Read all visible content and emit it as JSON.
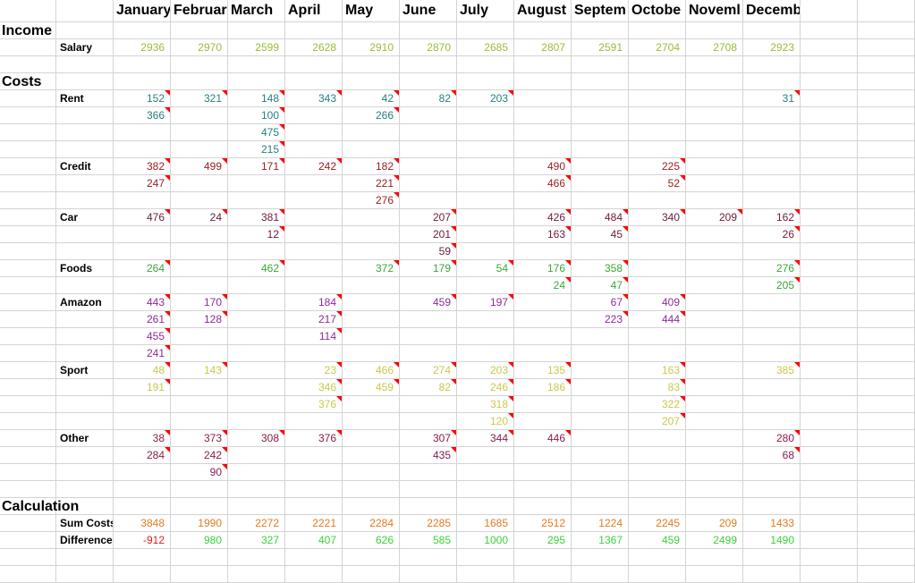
{
  "months": [
    "January",
    "Februar",
    "March",
    "April",
    "May",
    "June",
    "July",
    "August",
    "Septem",
    "Octobe",
    "Noveml",
    "December"
  ],
  "sections": {
    "income": "Income",
    "costs": "Costs",
    "calculation": "Calculation"
  },
  "colors": {
    "salary": "#9bbb3b",
    "rent": "#267f7f",
    "credit": "#9b1b1b",
    "car": "#6b1b3b",
    "foods": "#3aa63a",
    "amazon": "#8f2a9c",
    "sport": "#c9c94a",
    "other": "#8b1b4b",
    "sum": "#e07b20",
    "diff_pos": "#3ad13a",
    "diff_neg": "#e01b1b",
    "grid": "#d4d4d4"
  },
  "income": [
    {
      "label": "Salary",
      "color": "salary",
      "values": [
        "2936",
        "2970",
        "2599",
        "2628",
        "2910",
        "2870",
        "2685",
        "2807",
        "2591",
        "2704",
        "2708",
        "2923"
      ]
    }
  ],
  "costs": [
    {
      "label": "Rent",
      "color": "rent",
      "rows": [
        [
          "152",
          "321",
          "148",
          "343",
          "42",
          "82",
          "203",
          "",
          "",
          "",
          "",
          "31"
        ],
        [
          "366",
          "",
          "100",
          "",
          "266",
          "",
          "",
          "",
          "",
          "",
          "",
          ""
        ],
        [
          "",
          "",
          "475",
          "",
          "",
          "",
          "",
          "",
          "",
          "",
          "",
          ""
        ],
        [
          "",
          "",
          "215",
          "",
          "",
          "",
          "",
          "",
          "",
          "",
          "",
          ""
        ]
      ]
    },
    {
      "label": "Credit",
      "color": "credit",
      "rows": [
        [
          "382",
          "499",
          "171",
          "242",
          "182",
          "",
          "",
          "490",
          "",
          "225",
          "",
          ""
        ],
        [
          "247",
          "",
          "",
          "",
          "221",
          "",
          "",
          "466",
          "",
          "52",
          "",
          ""
        ],
        [
          "",
          "",
          "",
          "",
          "276",
          "",
          "",
          "",
          "",
          "",
          "",
          ""
        ]
      ]
    },
    {
      "label": "Car",
      "color": "car",
      "rows": [
        [
          "476",
          "24",
          "381",
          "",
          "",
          "207",
          "",
          "426",
          "484",
          "340",
          "209",
          "162"
        ],
        [
          "",
          "",
          "12",
          "",
          "",
          "201",
          "",
          "163",
          "45",
          "",
          "",
          "26"
        ],
        [
          "",
          "",
          "",
          "",
          "",
          "59",
          "",
          "",
          "",
          "",
          "",
          ""
        ]
      ]
    },
    {
      "label": "Foods",
      "color": "foods",
      "rows": [
        [
          "264",
          "",
          "462",
          "",
          "372",
          "179",
          "54",
          "176",
          "358",
          "",
          "",
          "276"
        ],
        [
          "",
          "",
          "",
          "",
          "",
          "",
          "",
          "24",
          "47",
          "",
          "",
          "205"
        ]
      ]
    },
    {
      "label": "Amazon",
      "color": "amazon",
      "rows": [
        [
          "443",
          "170",
          "",
          "184",
          "",
          "459",
          "197",
          "",
          "67",
          "409",
          "",
          ""
        ],
        [
          "261",
          "128",
          "",
          "217",
          "",
          "",
          "",
          "",
          "223",
          "444",
          "",
          ""
        ],
        [
          "455",
          "",
          "",
          "114",
          "",
          "",
          "",
          "",
          "",
          "",
          "",
          ""
        ],
        [
          "241",
          "",
          "",
          "",
          "",
          "",
          "",
          "",
          "",
          "",
          "",
          ""
        ]
      ]
    },
    {
      "label": "Sport",
      "color": "sport",
      "rows": [
        [
          "48",
          "143",
          "",
          "23",
          "466",
          "274",
          "203",
          "135",
          "",
          "163",
          "",
          "385"
        ],
        [
          "191",
          "",
          "",
          "346",
          "459",
          "82",
          "246",
          "186",
          "",
          "83",
          "",
          ""
        ],
        [
          "",
          "",
          "",
          "376",
          "",
          "",
          "318",
          "",
          "",
          "322",
          "",
          ""
        ],
        [
          "",
          "",
          "",
          "",
          "",
          "",
          "120",
          "",
          "",
          "207",
          "",
          ""
        ]
      ]
    },
    {
      "label": "Other",
      "color": "other",
      "rows": [
        [
          "38",
          "373",
          "308",
          "376",
          "",
          "307",
          "344",
          "446",
          "",
          "",
          "",
          "280"
        ],
        [
          "284",
          "242",
          "",
          "",
          "",
          "435",
          "",
          "",
          "",
          "",
          "",
          "68"
        ],
        [
          "",
          "90",
          "",
          "",
          "",
          "",
          "",
          "",
          "",
          "",
          "",
          ""
        ]
      ]
    }
  ],
  "calculation": [
    {
      "label": "Sum Costs",
      "color": "sum",
      "values": [
        "3848",
        "1990",
        "2272",
        "2221",
        "2284",
        "2285",
        "1685",
        "2512",
        "1224",
        "2245",
        "209",
        "1433"
      ]
    },
    {
      "label": "Difference",
      "color": "diff",
      "values": [
        "-912",
        "980",
        "327",
        "407",
        "626",
        "585",
        "1000",
        "295",
        "1367",
        "459",
        "2499",
        "1490"
      ]
    }
  ]
}
